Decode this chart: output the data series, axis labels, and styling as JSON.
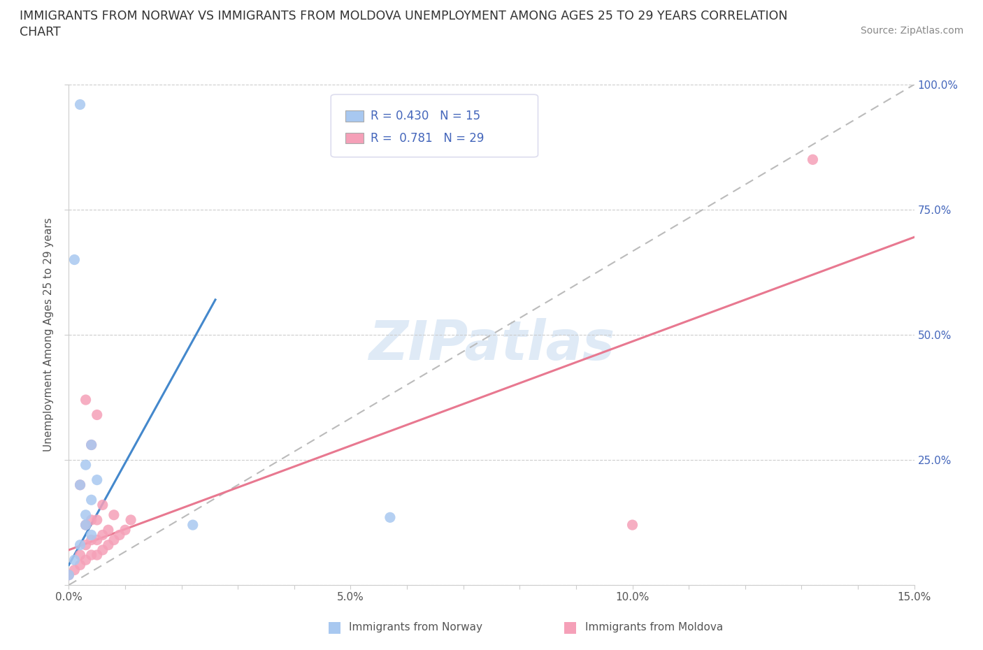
{
  "title_line1": "IMMIGRANTS FROM NORWAY VS IMMIGRANTS FROM MOLDOVA UNEMPLOYMENT AMONG AGES 25 TO 29 YEARS CORRELATION",
  "title_line2": "CHART",
  "source": "Source: ZipAtlas.com",
  "ylabel": "Unemployment Among Ages 25 to 29 years",
  "xlim": [
    0.0,
    0.15
  ],
  "ylim": [
    0.0,
    1.0
  ],
  "norway_color": "#a8c8f0",
  "moldova_color": "#f5a0b8",
  "norway_line_color": "#4488cc",
  "moldova_line_color": "#e87890",
  "diagonal_color": "#bbbbbb",
  "R_norway": 0.43,
  "N_norway": 15,
  "R_moldova": 0.781,
  "N_moldova": 29,
  "norway_line_x0": 0.0,
  "norway_line_y0": 0.04,
  "norway_line_x1": 0.026,
  "norway_line_y1": 0.57,
  "moldova_line_x0": 0.0,
  "moldova_line_y0": 0.07,
  "moldova_line_x1": 0.15,
  "moldova_line_y1": 0.695,
  "norway_scatter_x": [
    0.0,
    0.001,
    0.002,
    0.003,
    0.004,
    0.002,
    0.003,
    0.004,
    0.005,
    0.003,
    0.004,
    0.001,
    0.057,
    0.022,
    0.002
  ],
  "norway_scatter_y": [
    0.02,
    0.05,
    0.08,
    0.12,
    0.17,
    0.2,
    0.24,
    0.28,
    0.21,
    0.14,
    0.1,
    0.65,
    0.135,
    0.12,
    0.96
  ],
  "moldova_scatter_x": [
    0.0,
    0.001,
    0.002,
    0.002,
    0.003,
    0.003,
    0.003,
    0.004,
    0.004,
    0.004,
    0.005,
    0.005,
    0.005,
    0.005,
    0.006,
    0.006,
    0.006,
    0.007,
    0.007,
    0.008,
    0.008,
    0.009,
    0.01,
    0.011,
    0.002,
    0.003,
    0.004,
    0.1,
    0.132
  ],
  "moldova_scatter_y": [
    0.02,
    0.03,
    0.04,
    0.06,
    0.05,
    0.08,
    0.12,
    0.06,
    0.09,
    0.13,
    0.06,
    0.09,
    0.13,
    0.34,
    0.07,
    0.1,
    0.16,
    0.08,
    0.11,
    0.09,
    0.14,
    0.1,
    0.11,
    0.13,
    0.2,
    0.37,
    0.28,
    0.12,
    0.85
  ],
  "watermark": "ZIPatlas",
  "background_color": "#ffffff",
  "norway_legend_label": "Immigrants from Norway",
  "moldova_legend_label": "Immigrants from Moldova"
}
